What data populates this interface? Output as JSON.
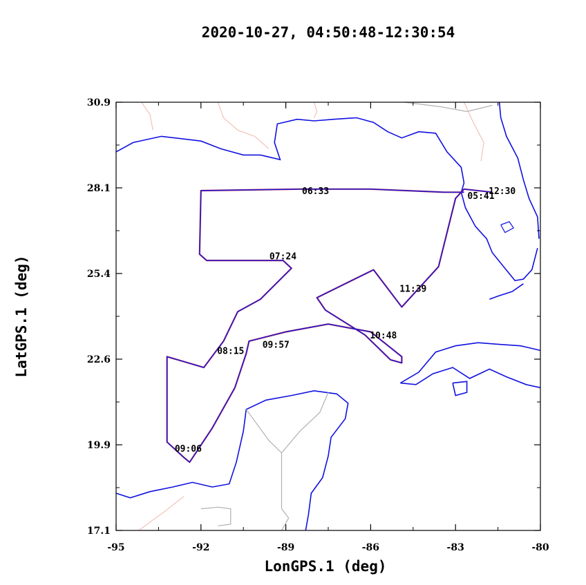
{
  "chart_data": {
    "type": "line",
    "title": "2020-10-27, 04:50:48-12:30:54",
    "xlabel": "LonGPS.1 (deg)",
    "ylabel": "LatGPS.1 (deg)",
    "xlim": [
      -95,
      -80
    ],
    "ylim": [
      17.1,
      30.9
    ],
    "xticks": [
      "-95",
      "-92",
      "-89",
      "-86",
      "-83",
      "-80"
    ],
    "yticks": [
      "17.1",
      "19.9",
      "22.6",
      "25.4",
      "28.1",
      "30.9"
    ],
    "grid": false,
    "legend": "none",
    "colors": {
      "track": "#1a1adc",
      "track_highlight": "#c0203a",
      "coastline": "#1010e0",
      "borders": "#b0b0b0",
      "rivers": "#f0b8a8"
    },
    "series": [
      {
        "x": [
          -82.7,
          -83.4,
          -86.0,
          -88.5,
          -92.0,
          -92.05,
          -91.8,
          -89.1,
          -88.8,
          -89.9,
          -90.7,
          -91.2,
          -91.9,
          -93.2,
          -93.2,
          -92.6,
          -92.4,
          -91.6,
          -90.8,
          -90.4,
          -90.3,
          -89.0,
          -87.5,
          -86.0,
          -84.9,
          -84.9,
          -85.3,
          -86.2,
          -87.6,
          -87.9,
          -85.9,
          -84.9,
          -83.6,
          -83.0,
          -82.7,
          -81.7
        ],
        "y": [
          28.0,
          28.0,
          28.1,
          28.1,
          28.05,
          26.0,
          25.8,
          25.8,
          25.55,
          24.55,
          24.15,
          23.2,
          22.35,
          22.7,
          19.95,
          19.45,
          19.3,
          20.4,
          21.7,
          22.8,
          23.2,
          23.5,
          23.75,
          23.5,
          22.7,
          22.5,
          22.6,
          23.4,
          24.2,
          24.6,
          25.5,
          24.3,
          25.6,
          27.8,
          28.1,
          28.0
        ]
      }
    ],
    "annotations": [
      {
        "label": "06:33",
        "x": -87.95,
        "y": 28.05
      },
      {
        "label": "07:24",
        "x": -89.1,
        "y": 25.95
      },
      {
        "label": "08:15",
        "x": -90.95,
        "y": 22.9
      },
      {
        "label": "09:06",
        "x": -92.45,
        "y": 19.75
      },
      {
        "label": "09:57",
        "x": -89.35,
        "y": 23.1
      },
      {
        "label": "10:48",
        "x": -85.55,
        "y": 23.4
      },
      {
        "label": "11:39",
        "x": -84.5,
        "y": 24.9
      },
      {
        "label": "05:41",
        "x": -82.1,
        "y": 27.9
      },
      {
        "label": "12:30",
        "x": -81.35,
        "y": 28.05
      }
    ]
  }
}
